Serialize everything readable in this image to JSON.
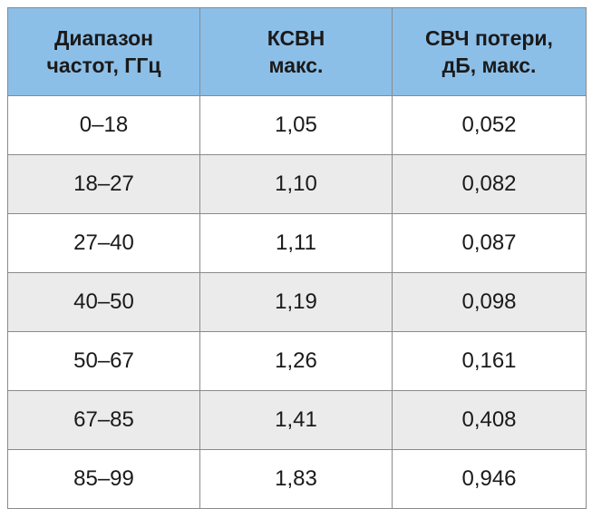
{
  "table": {
    "header": [
      [
        "Диапазон",
        "частот, ГГц"
      ],
      [
        "КСВН",
        "макс."
      ],
      [
        "СВЧ потери,",
        "дБ, макс."
      ]
    ],
    "rows": [
      [
        "0–18",
        "1,05",
        "0,052"
      ],
      [
        "18–27",
        "1,10",
        "0,082"
      ],
      [
        "27–40",
        "1,11",
        "0,087"
      ],
      [
        "40–50",
        "1,19",
        "0,098"
      ],
      [
        "50–67",
        "1,26",
        "0,161"
      ],
      [
        "67–85",
        "1,41",
        "0,408"
      ],
      [
        "85–99",
        "1,83",
        "0,946"
      ]
    ]
  }
}
